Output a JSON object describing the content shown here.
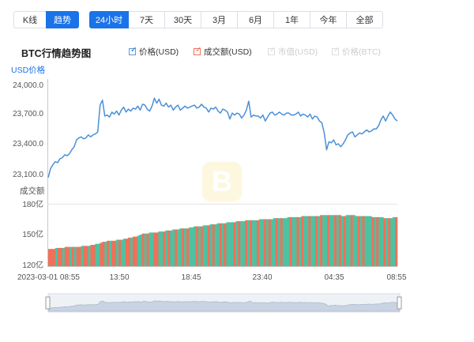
{
  "view_tabs": [
    {
      "label": "K线",
      "active": false
    },
    {
      "label": "趋势",
      "active": true
    }
  ],
  "range_tabs": [
    {
      "label": "24小时",
      "active": true
    },
    {
      "label": "7天",
      "active": false
    },
    {
      "label": "30天",
      "active": false
    },
    {
      "label": "3月",
      "active": false
    },
    {
      "label": "6月",
      "active": false
    },
    {
      "label": "1年",
      "active": false
    },
    {
      "label": "今年",
      "active": false
    },
    {
      "label": "全部",
      "active": false
    }
  ],
  "chart_title": "BTC行情趋势图",
  "legend": [
    {
      "label": "价格(USD)",
      "checked": true,
      "color": "#5b9bd5"
    },
    {
      "label": "成交额(USD)",
      "checked": true,
      "color": "#f0705a"
    },
    {
      "label": "市值(USD)",
      "checked": false,
      "color": "#cccccc"
    },
    {
      "label": "价格(BTC)",
      "checked": false,
      "color": "#cccccc"
    }
  ],
  "colors": {
    "accent": "#1a73e8",
    "price_line": "#4a90d9",
    "volume_up": "#4cc2a0",
    "volume_down": "#f0705a"
  },
  "chart_data": {
    "type": "line",
    "price_axis_title": "USD价格",
    "volume_axis_title": "成交额",
    "price_ticks": [
      "24,000.0",
      "23,700.0",
      "23,400.0",
      "23,100.0"
    ],
    "price_ylim": [
      23100,
      24000
    ],
    "volume_ticks": [
      "180亿",
      "150亿",
      "120亿"
    ],
    "volume_ylim": [
      120,
      180
    ],
    "x_ticks": [
      "2023-03-01 08:55",
      "13:50",
      "18:45",
      "23:40",
      "04:35",
      "08:55"
    ],
    "price_series": {
      "name": "价格(USD)",
      "values": [
        23070,
        23160,
        23200,
        23230,
        23220,
        23260,
        23270,
        23300,
        23290,
        23310,
        23350,
        23380,
        23450,
        23470,
        23480,
        23460,
        23470,
        23500,
        23480,
        23500,
        23510,
        23530,
        23800,
        23850,
        23690,
        23700,
        23680,
        23730,
        23710,
        23740,
        23700,
        23750,
        23780,
        23730,
        23760,
        23740,
        23770,
        23760,
        23790,
        23750,
        23810,
        23800,
        23760,
        23740,
        23790,
        23870,
        23820,
        23860,
        23800,
        23790,
        23820,
        23780,
        23800,
        23750,
        23780,
        23800,
        23750,
        23770,
        23790,
        23770,
        23780,
        23790,
        23800,
        23770,
        23780,
        23810,
        23780,
        23770,
        23730,
        23770,
        23760,
        23780,
        23740,
        23720,
        23760,
        23750,
        23730,
        23660,
        23720,
        23700,
        23720,
        23710,
        23670,
        23700,
        23750,
        23840,
        23680,
        23700,
        23690,
        23690,
        23670,
        23700,
        23640,
        23680,
        23720,
        23730,
        23700,
        23710,
        23730,
        23710,
        23700,
        23720,
        23720,
        23700,
        23700,
        23710,
        23730,
        23690,
        23710,
        23700,
        23680,
        23710,
        23660,
        23690,
        23680,
        23640,
        23620,
        23520,
        23350,
        23430,
        23420,
        23450,
        23400,
        23410,
        23380,
        23410,
        23450,
        23500,
        23520,
        23530,
        23480,
        23500,
        23520,
        23510,
        23530,
        23550,
        23530,
        23540,
        23560,
        23560,
        23590,
        23650,
        23690,
        23640,
        23690,
        23730,
        23700,
        23660,
        23640
      ]
    },
    "volume_series": {
      "name": "成交额(USD)",
      "values": [
        136,
        136,
        136,
        137,
        137,
        137,
        137,
        138,
        138,
        138,
        138,
        138,
        138,
        138,
        139,
        139,
        139,
        139,
        140,
        140,
        141,
        141,
        142,
        143,
        143,
        144,
        144,
        144,
        144,
        145,
        145,
        145,
        146,
        146,
        147,
        147,
        148,
        148,
        149,
        150,
        151,
        151,
        151,
        152,
        152,
        152,
        152,
        153,
        153,
        153,
        154,
        154,
        154,
        155,
        155,
        155,
        156,
        156,
        156,
        156,
        157,
        157,
        158,
        158,
        158,
        158,
        159,
        159,
        159,
        160,
        160,
        160,
        161,
        161,
        161,
        161,
        162,
        162,
        162,
        162,
        163,
        163,
        163,
        163,
        164,
        164,
        164,
        164,
        164,
        164,
        165,
        165,
        165,
        165,
        165,
        165,
        166,
        166,
        166,
        166,
        166,
        166,
        167,
        167,
        167,
        167,
        167,
        167,
        168,
        168,
        168,
        168,
        168,
        168,
        168,
        168,
        169,
        169,
        169,
        169,
        169,
        169,
        169,
        169,
        169,
        168,
        168,
        169,
        169,
        169,
        169,
        168,
        168,
        168,
        168,
        168,
        168,
        168,
        167,
        167,
        167,
        167,
        167,
        166,
        166,
        166,
        166,
        167,
        167
      ],
      "up_flags": [
        0,
        0,
        0,
        1,
        0,
        0,
        1,
        0,
        0,
        1,
        0,
        1,
        0,
        0,
        1,
        0,
        0,
        1,
        0,
        0,
        1,
        1,
        0,
        0,
        1,
        0,
        1,
        0,
        0,
        1,
        0,
        1,
        1,
        0,
        0,
        1,
        0,
        0,
        1,
        1,
        0,
        1,
        0,
        1,
        1,
        0,
        0,
        1,
        1,
        0,
        1,
        0,
        1,
        1,
        0,
        1,
        1,
        0,
        1,
        0,
        1,
        1,
        1,
        0,
        1,
        0,
        1,
        1,
        0,
        1,
        0,
        1,
        1,
        0,
        1,
        0,
        1,
        1,
        1,
        0,
        1,
        0,
        1,
        1,
        0,
        1,
        0,
        1,
        1,
        0,
        1,
        1,
        0,
        1,
        0,
        1,
        1,
        0,
        1,
        0,
        1,
        1,
        1,
        0,
        1,
        1,
        0,
        1,
        0,
        1,
        1,
        0,
        1,
        1,
        0,
        1,
        0,
        1,
        1,
        0,
        1,
        1,
        0,
        1,
        0,
        1,
        0,
        1,
        1,
        0,
        1,
        1,
        0,
        1,
        0,
        1,
        1,
        1,
        0,
        1,
        0,
        1,
        1,
        0,
        1,
        0,
        1,
        1,
        0
      ]
    }
  }
}
